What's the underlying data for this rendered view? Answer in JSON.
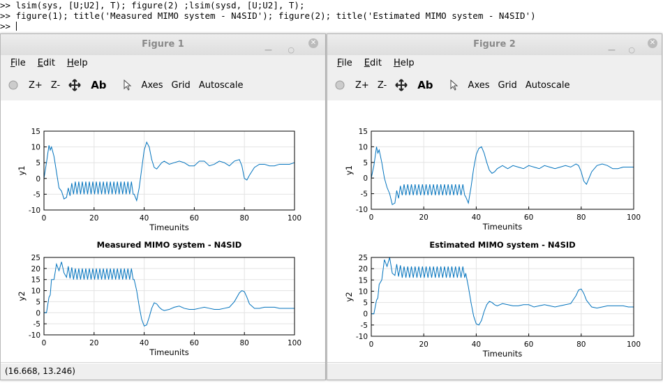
{
  "console": {
    "lines": [
      ">> lsim(sys, [U;U2], T); figure(2) ;lsim(sysd, [U;U2], T);",
      ">> figure(1); title('Measured MIMO system - N4SID'); figure(2); title('Estimated MIMO system - N4SID')",
      ">> "
    ]
  },
  "windows": [
    {
      "title": "Figure 1",
      "menu": [
        "File",
        "Edit",
        "Help"
      ],
      "toolbar": [
        "Z+",
        "Z-",
        "Ab",
        "Axes",
        "Grid",
        "Autoscale"
      ],
      "status": "(16.668, 13.246)",
      "plots": [
        {
          "type": "line",
          "xlabel": "Timeunits",
          "ylabel": "y1",
          "color": "#0072bd",
          "grid": true,
          "xlim": [
            0,
            100
          ],
          "ylim": [
            -10,
            15
          ],
          "xticks": [
            0,
            20,
            40,
            60,
            80,
            100
          ],
          "yticks": [
            -10,
            -5,
            0,
            5,
            10,
            15
          ],
          "x": [
            0,
            1,
            2,
            2.5,
            3,
            4,
            5,
            6,
            7,
            8,
            9,
            9.7,
            10.4,
            11.1,
            11.8,
            12.5,
            13.2,
            13.9,
            14.6,
            15.3,
            16,
            16.7,
            17.4,
            18.1,
            18.8,
            19.5,
            20.2,
            20.9,
            21.6,
            22.3,
            23,
            23.7,
            24.4,
            25.1,
            25.8,
            26.5,
            27.2,
            27.9,
            28.6,
            29.3,
            30,
            30.7,
            31.4,
            32.1,
            32.8,
            33.5,
            34.2,
            34.9,
            35.6,
            36,
            37,
            38,
            39,
            40,
            41,
            42,
            43,
            44,
            45,
            46,
            47,
            48,
            50,
            52,
            54,
            56,
            58,
            60,
            62,
            64,
            66,
            68,
            70,
            72,
            74,
            76,
            78,
            79,
            80,
            81,
            82,
            84,
            86,
            88,
            90,
            92,
            94,
            96,
            98,
            100
          ],
          "values": [
            0,
            5,
            10.5,
            9,
            10,
            7,
            2,
            -3,
            -4,
            -6.5,
            -6,
            -3,
            -5.5,
            -1.5,
            -5,
            -1,
            -5,
            -1,
            -5,
            -1,
            -5,
            -1,
            -5,
            -1,
            -5,
            -1,
            -5,
            -1,
            -5,
            -1,
            -5,
            -1,
            -5,
            -1,
            -5,
            -1,
            -5,
            -1,
            -5,
            -1,
            -5,
            -1,
            -5,
            -1,
            -5,
            -1,
            -5,
            -1,
            -5,
            -5,
            -7,
            -3,
            3,
            9,
            11.5,
            10,
            6,
            3.5,
            3,
            4,
            5,
            5.5,
            4.5,
            5,
            5.5,
            5,
            4,
            4,
            5.5,
            5.5,
            4,
            4.5,
            5.5,
            5,
            4,
            5.5,
            6,
            4,
            0,
            -0.5,
            1,
            3.5,
            4.5,
            4.5,
            4,
            4,
            4.5,
            4.5,
            4.5,
            5
          ]
        },
        {
          "type": "line",
          "title": "Measured MIMO system - N4SID",
          "xlabel": "Timeunits",
          "ylabel": "y2",
          "color": "#0072bd",
          "grid": true,
          "xlim": [
            0,
            100
          ],
          "ylim": [
            -10,
            25
          ],
          "xticks": [
            0,
            20,
            40,
            60,
            80,
            100
          ],
          "yticks": [
            -10,
            -5,
            0,
            5,
            10,
            15,
            20,
            25
          ],
          "x": [
            0,
            1,
            2,
            2.5,
            3,
            4,
            5,
            6,
            7,
            8,
            9,
            9.7,
            10.4,
            11.1,
            11.8,
            12.5,
            13.2,
            13.9,
            14.6,
            15.3,
            16,
            16.7,
            17.4,
            18.1,
            18.8,
            19.5,
            20.2,
            20.9,
            21.6,
            22.3,
            23,
            23.7,
            24.4,
            25.1,
            25.8,
            26.5,
            27.2,
            27.9,
            28.6,
            29.3,
            30,
            30.7,
            31.4,
            32.1,
            32.8,
            33.5,
            34.2,
            34.9,
            35.6,
            36,
            37,
            38,
            39,
            40,
            41,
            42,
            43,
            44,
            45,
            46,
            47,
            48,
            50,
            52,
            54,
            56,
            58,
            60,
            62,
            64,
            66,
            68,
            70,
            72,
            74,
            76,
            78,
            79,
            80,
            81,
            82,
            84,
            86,
            88,
            90,
            92,
            94,
            96,
            98,
            100
          ],
          "values": [
            0,
            0,
            7,
            8,
            15,
            15,
            22,
            19,
            23,
            18,
            16,
            21,
            15.5,
            20.5,
            15,
            20,
            15,
            20,
            15,
            20,
            15,
            20,
            15,
            20,
            15,
            20,
            15,
            20,
            15,
            20,
            15,
            20,
            15,
            20,
            15,
            20,
            15,
            20,
            15,
            20,
            15,
            20,
            15,
            20,
            15,
            20,
            15,
            20,
            15,
            15,
            10,
            3,
            -3,
            -6,
            -5.5,
            -2,
            2,
            4.5,
            4,
            2.5,
            1.5,
            1,
            1.5,
            2.5,
            3,
            2,
            1.5,
            1.5,
            2,
            2.5,
            2,
            1.5,
            1.5,
            2,
            2.5,
            5,
            9,
            10,
            9.5,
            7,
            4,
            2,
            2,
            2.5,
            2.5,
            2.5,
            2,
            2,
            2,
            2
          ]
        }
      ]
    },
    {
      "title": "Figure 2",
      "menu": [
        "File",
        "Edit",
        "Help"
      ],
      "toolbar": [
        "Z+",
        "Z-",
        "Ab",
        "Axes",
        "Grid",
        "Autoscale"
      ],
      "plots": [
        {
          "type": "line",
          "xlabel": "Timeunits",
          "ylabel": "y1",
          "color": "#0072bd",
          "grid": true,
          "xlim": [
            0,
            100
          ],
          "ylim": [
            -10,
            15
          ],
          "xticks": [
            0,
            20,
            40,
            60,
            80,
            100
          ],
          "yticks": [
            -10,
            -5,
            0,
            5,
            10,
            15
          ],
          "x": [
            0,
            1,
            2,
            2.5,
            3,
            4,
            5,
            6,
            7,
            8,
            9,
            9.7,
            10.4,
            11.1,
            11.8,
            12.5,
            13.2,
            13.9,
            14.6,
            15.3,
            16,
            16.7,
            17.4,
            18.1,
            18.8,
            19.5,
            20.2,
            20.9,
            21.6,
            22.3,
            23,
            23.7,
            24.4,
            25.1,
            25.8,
            26.5,
            27.2,
            27.9,
            28.6,
            29.3,
            30,
            30.7,
            31.4,
            32.1,
            32.8,
            33.5,
            34.2,
            34.9,
            35.6,
            36,
            37,
            38,
            39,
            40,
            41,
            42,
            43,
            44,
            45,
            46,
            47,
            48,
            50,
            52,
            54,
            56,
            58,
            60,
            62,
            64,
            66,
            68,
            70,
            72,
            74,
            76,
            78,
            79,
            80,
            81,
            82,
            84,
            86,
            88,
            90,
            92,
            94,
            96,
            98,
            100
          ],
          "values": [
            0,
            4,
            10,
            8,
            9,
            5,
            0,
            -3,
            -5,
            -8.5,
            -8,
            -4,
            -6.5,
            -2.5,
            -5.5,
            -2,
            -5.5,
            -2,
            -5.5,
            -2,
            -5.5,
            -2,
            -5.5,
            -2,
            -5.5,
            -2,
            -5.5,
            -2,
            -5.5,
            -2,
            -5.5,
            -2,
            -5.5,
            -2,
            -5.5,
            -2,
            -5.5,
            -2,
            -5.5,
            -2,
            -5.5,
            -2,
            -5.5,
            -2,
            -5.5,
            -2,
            -5.5,
            -2,
            -5.5,
            -6,
            -8,
            -3,
            3,
            7.5,
            9.5,
            10,
            8,
            5,
            2.5,
            1.5,
            2,
            3,
            4,
            3,
            4,
            3.5,
            3,
            4,
            3.5,
            3,
            4,
            3.5,
            3,
            3.5,
            4,
            3.5,
            4.5,
            4,
            2,
            -1,
            -2,
            2,
            4,
            4.5,
            4,
            3,
            3,
            3.5,
            3.5,
            3.5
          ]
        },
        {
          "type": "line",
          "title": "Estimated MIMO system - N4SID",
          "xlabel": "Timeunits",
          "ylabel": "y2",
          "color": "#0072bd",
          "grid": true,
          "xlim": [
            0,
            100
          ],
          "ylim": [
            -10,
            25
          ],
          "xticks": [
            0,
            20,
            40,
            60,
            80,
            100
          ],
          "yticks": [
            -10,
            -5,
            0,
            5,
            10,
            15,
            20,
            25
          ],
          "x": [
            0,
            1,
            2,
            2.5,
            3,
            4,
            5,
            6,
            7,
            8,
            9,
            9.7,
            10.4,
            11.1,
            11.8,
            12.5,
            13.2,
            13.9,
            14.6,
            15.3,
            16,
            16.7,
            17.4,
            18.1,
            18.8,
            19.5,
            20.2,
            20.9,
            21.6,
            22.3,
            23,
            23.7,
            24.4,
            25.1,
            25.8,
            26.5,
            27.2,
            27.9,
            28.6,
            29.3,
            30,
            30.7,
            31.4,
            32.1,
            32.8,
            33.5,
            34.2,
            34.9,
            35.6,
            36,
            37,
            38,
            39,
            40,
            41,
            42,
            43,
            44,
            45,
            46,
            47,
            48,
            50,
            52,
            54,
            56,
            58,
            60,
            62,
            64,
            66,
            68,
            70,
            72,
            74,
            76,
            78,
            79,
            80,
            81,
            82,
            84,
            86,
            88,
            90,
            92,
            94,
            96,
            98,
            100
          ],
          "values": [
            0,
            0,
            6,
            7,
            13,
            15,
            24,
            21,
            25,
            18,
            17,
            22,
            16.5,
            21.5,
            16,
            21,
            16,
            21,
            16,
            21,
            16,
            21,
            16,
            21,
            16,
            21,
            16,
            21,
            16,
            21,
            16,
            21,
            16,
            21,
            16,
            21,
            16,
            21,
            16,
            21,
            16,
            21,
            16,
            21,
            16,
            21,
            16,
            21,
            16,
            18,
            12,
            5,
            -1,
            -4.5,
            -5,
            -3,
            1,
            4,
            5.5,
            5,
            4,
            3.5,
            4.5,
            4,
            3.5,
            3.5,
            4,
            4,
            3,
            3.5,
            4,
            3.5,
            3,
            3.5,
            4,
            4.5,
            8,
            10.5,
            11,
            9,
            6,
            3,
            2.5,
            3,
            3.5,
            3.5,
            3.5,
            3.5,
            3,
            3
          ]
        }
      ]
    }
  ]
}
